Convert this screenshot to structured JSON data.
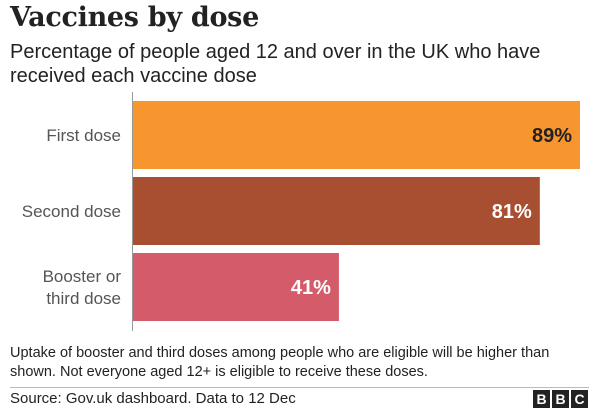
{
  "header": {
    "title": "Vaccines by dose",
    "subtitle": "Percentage of people aged 12 and over in the UK who have received each vaccine dose"
  },
  "chart_data": {
    "type": "bar",
    "orientation": "horizontal",
    "categories": [
      "First dose",
      "Second dose",
      "Booster or third dose"
    ],
    "category_lines": [
      [
        "First dose"
      ],
      [
        "Second dose"
      ],
      [
        "Booster or",
        "third dose"
      ]
    ],
    "values": [
      89,
      81,
      41
    ],
    "value_labels": [
      "89%",
      "81%",
      "41%"
    ],
    "colors": [
      "#f7952f",
      "#a84f31",
      "#d45c6a"
    ],
    "label_colors": [
      "#222222",
      "#ffffff",
      "#ffffff"
    ],
    "xlim": [
      0,
      89
    ],
    "grid": false,
    "title": "",
    "xlabel": "",
    "ylabel": ""
  },
  "footer": {
    "note": "Uptake of booster and third doses among people who are eligible will be higher than shown. Not everyone aged 12+ is eligible to receive these doses.",
    "source": "Source: Gov.uk dashboard. Data to 12 Dec",
    "logo_letters": [
      "B",
      "B",
      "C"
    ]
  }
}
